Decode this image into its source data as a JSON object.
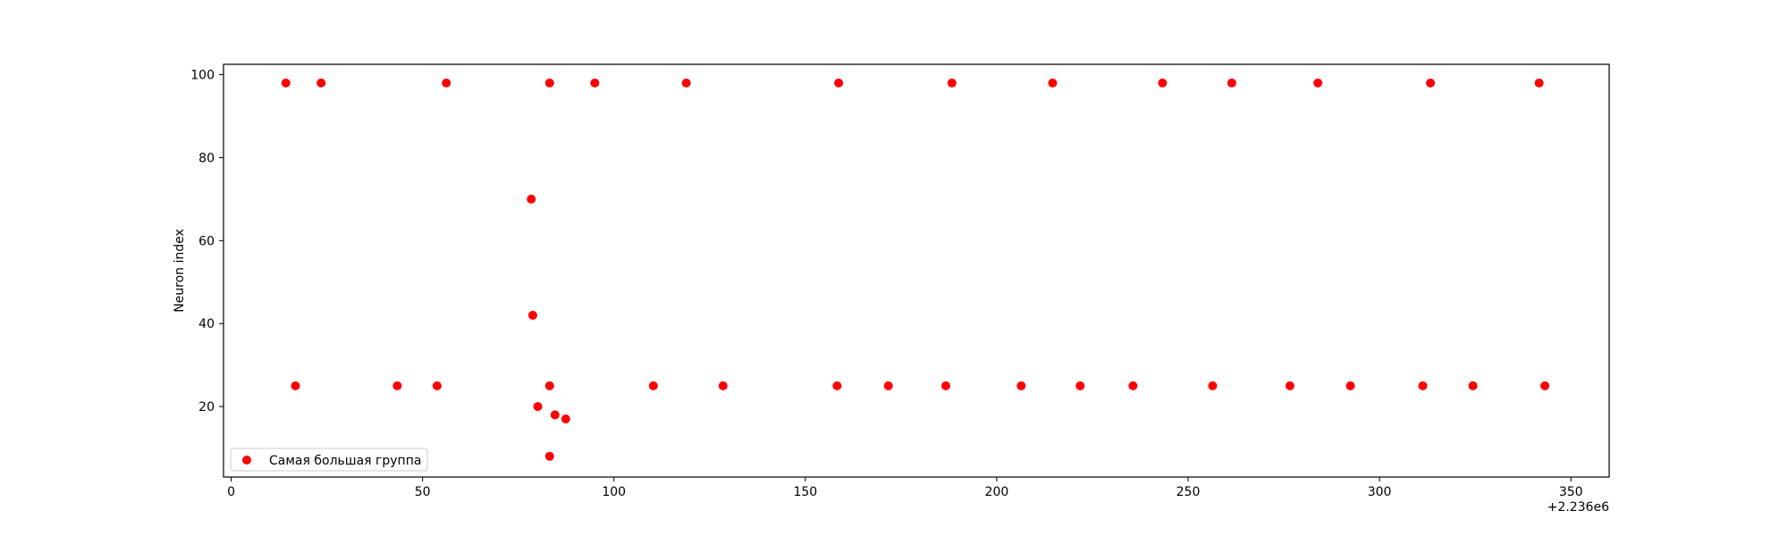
{
  "chart_data": {
    "type": "scatter",
    "ylabel": "Neuron index",
    "x_offset_label": "+2.236e6",
    "xlim": [
      -2,
      360
    ],
    "ylim": [
      3,
      102.5
    ],
    "x_ticks": [
      0,
      50,
      100,
      150,
      200,
      250,
      300,
      350
    ],
    "y_ticks": [
      20,
      40,
      60,
      80,
      100
    ],
    "grid": false,
    "legend_position": "lower-left",
    "series": [
      {
        "name": "Самая большая группа",
        "color": "#ff0000",
        "points": [
          [
            14.3,
            98
          ],
          [
            23.5,
            98
          ],
          [
            56.2,
            98
          ],
          [
            83.2,
            98
          ],
          [
            95.0,
            98
          ],
          [
            118.9,
            98
          ],
          [
            158.7,
            98
          ],
          [
            188.3,
            98
          ],
          [
            214.6,
            98
          ],
          [
            243.3,
            98
          ],
          [
            261.4,
            98
          ],
          [
            283.9,
            98
          ],
          [
            313.3,
            98
          ],
          [
            341.7,
            98
          ],
          [
            78.4,
            70
          ],
          [
            78.8,
            42
          ],
          [
            16.8,
            25
          ],
          [
            43.4,
            25
          ],
          [
            53.8,
            25
          ],
          [
            83.2,
            25
          ],
          [
            110.3,
            25
          ],
          [
            128.5,
            25
          ],
          [
            158.3,
            25
          ],
          [
            171.7,
            25
          ],
          [
            186.7,
            25
          ],
          [
            206.4,
            25
          ],
          [
            221.8,
            25
          ],
          [
            235.6,
            25
          ],
          [
            256.4,
            25
          ],
          [
            276.6,
            25
          ],
          [
            292.4,
            25
          ],
          [
            311.3,
            25
          ],
          [
            324.4,
            25
          ],
          [
            343.2,
            25
          ],
          [
            80.1,
            20
          ],
          [
            84.6,
            18
          ],
          [
            87.4,
            17
          ],
          [
            83.2,
            8
          ]
        ]
      }
    ]
  }
}
